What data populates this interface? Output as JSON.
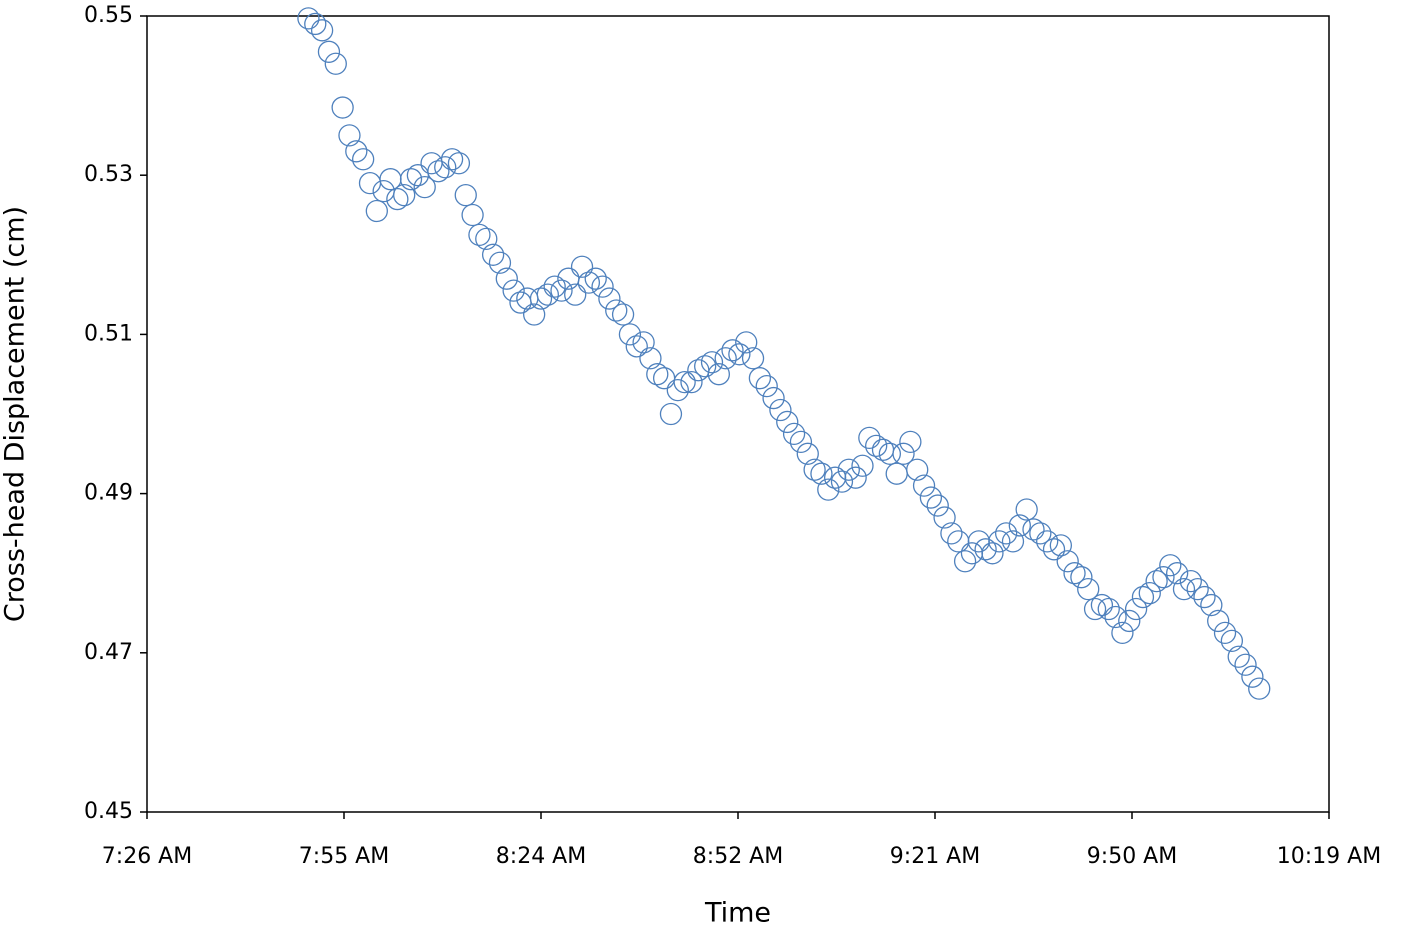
{
  "chart_data": {
    "type": "scatter",
    "x_label": "Time",
    "y_label": "Cross-head Displacement (cm)",
    "xlim": [
      446.4,
      619.2
    ],
    "xticks": [
      {
        "value": 446.4,
        "label": "7:26 AM"
      },
      {
        "value": 475.2,
        "label": "7:55 AM"
      },
      {
        "value": 504,
        "label": "8:24 AM"
      },
      {
        "value": 532.8,
        "label": "8:52 AM"
      },
      {
        "value": 561.6,
        "label": "9:21 AM"
      },
      {
        "value": 590.4,
        "label": "9:50 AM"
      },
      {
        "value": 619.2,
        "label": "10:19 AM"
      }
    ],
    "ylim": [
      0.45,
      0.55
    ],
    "yticks": [
      0.45,
      0.47,
      0.49,
      0.51,
      0.53,
      0.55
    ],
    "grid": false,
    "color": "#4f81bd",
    "x": [
      470,
      471,
      472,
      473,
      474,
      475,
      476,
      477,
      478,
      479,
      480,
      481,
      482,
      483,
      484,
      485,
      486,
      487,
      488,
      489,
      490,
      491,
      492,
      493,
      494,
      495,
      496,
      497,
      498,
      499,
      500,
      501,
      502,
      503,
      504,
      505,
      506,
      507,
      508,
      509,
      510,
      511,
      512,
      513,
      514,
      515,
      516,
      517,
      518,
      519,
      520,
      521,
      522,
      523,
      524,
      525,
      526,
      527,
      528,
      529,
      530,
      531,
      532,
      533,
      534,
      535,
      536,
      537,
      538,
      539,
      540,
      541,
      542,
      543,
      544,
      545,
      546,
      547,
      548,
      549,
      550,
      551,
      552,
      553,
      554,
      555,
      556,
      557,
      558,
      559,
      560,
      561,
      562,
      563,
      564,
      565,
      566,
      567,
      568,
      569,
      570,
      571,
      572,
      573,
      574,
      575,
      576,
      577,
      578,
      579,
      580,
      581,
      582,
      583,
      584,
      585,
      586,
      587,
      588,
      589,
      590,
      591,
      592,
      593,
      594,
      595,
      596,
      597,
      598,
      599,
      600,
      601,
      602,
      603,
      604,
      605,
      606,
      607,
      608,
      609
    ],
    "values": [
      0.5497,
      0.549,
      0.5482,
      0.5455,
      0.544,
      0.5385,
      0.535,
      0.533,
      0.532,
      0.529,
      0.5255,
      0.528,
      0.5295,
      0.527,
      0.5275,
      0.5295,
      0.53,
      0.5285,
      0.5315,
      0.5305,
      0.531,
      0.532,
      0.5315,
      0.5275,
      0.525,
      0.5225,
      0.522,
      0.52,
      0.519,
      0.517,
      0.5155,
      0.514,
      0.5145,
      0.5125,
      0.5145,
      0.515,
      0.516,
      0.5155,
      0.517,
      0.515,
      0.5185,
      0.5165,
      0.517,
      0.516,
      0.5145,
      0.513,
      0.5125,
      0.51,
      0.5085,
      0.509,
      0.507,
      0.505,
      0.5045,
      0.5,
      0.503,
      0.504,
      0.504,
      0.5055,
      0.506,
      0.5065,
      0.505,
      0.507,
      0.508,
      0.5075,
      0.509,
      0.507,
      0.5045,
      0.5035,
      0.502,
      0.5005,
      0.499,
      0.4975,
      0.4965,
      0.495,
      0.493,
      0.4925,
      0.4905,
      0.492,
      0.4915,
      0.493,
      0.492,
      0.4935,
      0.497,
      0.496,
      0.4955,
      0.495,
      0.4925,
      0.495,
      0.4965,
      0.493,
      0.491,
      0.4895,
      0.4885,
      0.487,
      0.485,
      0.484,
      0.4815,
      0.4825,
      0.484,
      0.483,
      0.4825,
      0.484,
      0.485,
      0.484,
      0.486,
      0.488,
      0.4855,
      0.485,
      0.484,
      0.483,
      0.4835,
      0.4815,
      0.48,
      0.4795,
      0.478,
      0.4755,
      0.476,
      0.4755,
      0.4745,
      0.4725,
      0.474,
      0.4755,
      0.477,
      0.4775,
      0.479,
      0.4795,
      0.481,
      0.48,
      0.478,
      0.479,
      0.478,
      0.477,
      0.476,
      0.474,
      0.4725,
      0.4715,
      0.4695,
      0.4685,
      0.467,
      0.4655
    ]
  }
}
